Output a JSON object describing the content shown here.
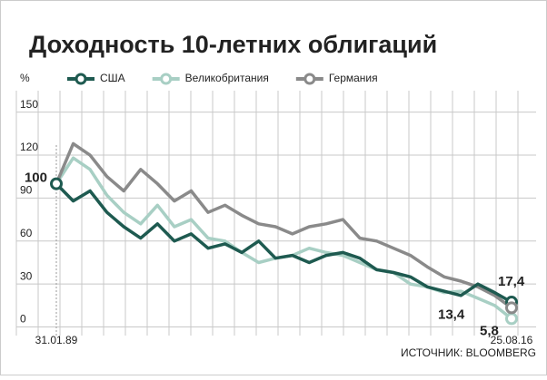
{
  "chart_data": {
    "type": "line",
    "title": "Доходность 10-летних облигаций",
    "y_label": "%",
    "source": "ИСТОЧНИК: BLOOMBERG",
    "categories": [
      "31.01.89",
      null,
      null,
      null,
      null,
      null,
      null,
      null,
      null,
      null,
      null,
      null,
      null,
      null,
      null,
      null,
      null,
      null,
      null,
      null,
      null,
      null,
      null,
      null,
      null,
      null,
      null,
      "25.08.16"
    ],
    "series": [
      {
        "name": "США",
        "color": "#1e5a50",
        "values": [
          100,
          88,
          95,
          80,
          70,
          62,
          72,
          60,
          65,
          55,
          58,
          52,
          60,
          48,
          50,
          45,
          50,
          52,
          48,
          40,
          38,
          35,
          28,
          25,
          22,
          30,
          24,
          17.4
        ],
        "value_labels": [
          "100",
          null,
          null,
          null,
          null,
          null,
          null,
          null,
          null,
          null,
          null,
          null,
          null,
          null,
          null,
          null,
          null,
          null,
          null,
          null,
          null,
          null,
          null,
          null,
          null,
          null,
          null,
          "17,4"
        ]
      },
      {
        "name": "Великобритания",
        "color": "#a8cfc4",
        "values": [
          100,
          118,
          110,
          92,
          80,
          72,
          85,
          70,
          75,
          62,
          60,
          52,
          45,
          48,
          50,
          55,
          52,
          50,
          45,
          40,
          38,
          30,
          28,
          24,
          25,
          20,
          15,
          5.8
        ],
        "value_labels": [
          null,
          null,
          null,
          null,
          null,
          null,
          null,
          null,
          null,
          null,
          null,
          null,
          null,
          null,
          null,
          null,
          null,
          null,
          null,
          null,
          null,
          null,
          null,
          null,
          null,
          null,
          null,
          "5,8"
        ]
      },
      {
        "name": "Германия",
        "color": "#8a8a8a",
        "values": [
          100,
          128,
          120,
          105,
          95,
          110,
          100,
          88,
          95,
          80,
          85,
          78,
          72,
          70,
          65,
          70,
          72,
          75,
          62,
          60,
          55,
          50,
          42,
          35,
          32,
          28,
          22,
          13.4
        ],
        "value_labels": [
          null,
          null,
          null,
          null,
          null,
          null,
          null,
          null,
          null,
          null,
          null,
          null,
          null,
          null,
          null,
          null,
          null,
          null,
          null,
          null,
          null,
          null,
          null,
          null,
          null,
          null,
          null,
          "13,4"
        ]
      }
    ],
    "ylim": [
      -6,
      165
    ],
    "yticks": [
      0,
      30,
      60,
      90,
      120,
      150
    ],
    "grid": true
  }
}
